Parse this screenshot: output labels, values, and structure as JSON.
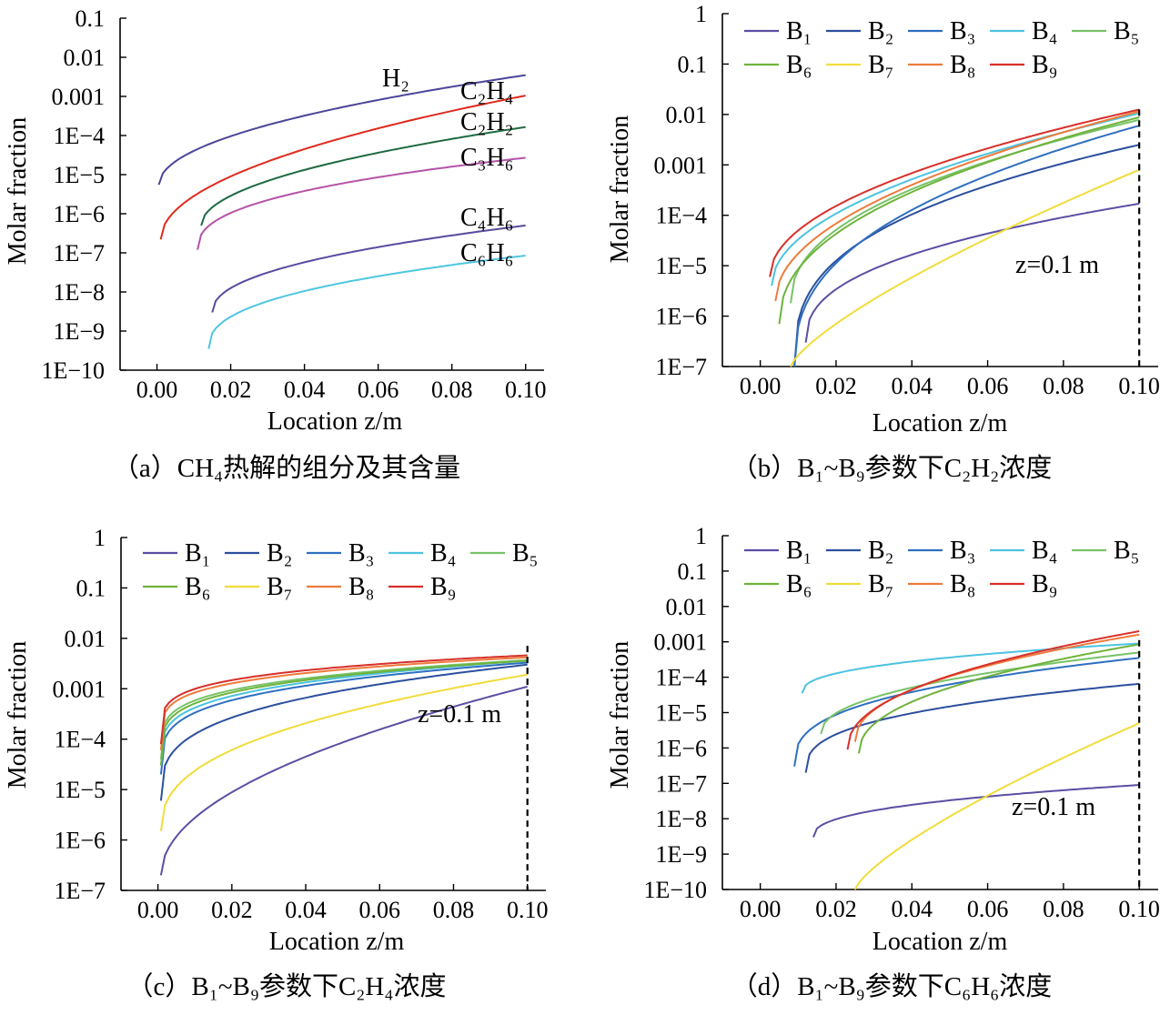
{
  "colors": {
    "B1": "#5a4fa3",
    "B2": "#2c4f9e",
    "B3": "#2f6fc0",
    "B4": "#4cc3e0",
    "B5": "#78c268",
    "B6": "#6fb33c",
    "B7": "#f2dc3a",
    "B8": "#ee7b3c",
    "B9": "#d7302a",
    "H2": "#4b4599",
    "C2H4": "#e02a1e",
    "C2H2": "#1e6b43",
    "C3H6": "#b554a8",
    "C4H6": "#5a4a9e",
    "C6H6": "#4fc6e0"
  },
  "chart_data": [
    {
      "id": "a",
      "type": "line",
      "caption": "（a）CH₄热解的组分及其含量",
      "xlabel": "Location z/m",
      "ylabel": "Molar fraction",
      "x_ticks": [
        "0.00",
        "0.02",
        "0.04",
        "0.06",
        "0.08",
        "0.10"
      ],
      "y_ticks": [
        "1E−10",
        "1E−9",
        "1E−8",
        "1E−7",
        "1E−6",
        "1E−5",
        "1E−4",
        "0.001",
        "0.01",
        "0.1"
      ],
      "xlim": [
        -0.01,
        0.105
      ],
      "ylim_log10": [
        -10,
        -1
      ],
      "y_scale": "log",
      "series": [
        {
          "name": "H2",
          "label": "H₂",
          "color_key": "H2",
          "x0": 0.0005,
          "y0": 5.5e-06,
          "y1": 0.0035,
          "k": 0.5
        },
        {
          "name": "C2H4",
          "label": "C₂H₄",
          "color_key": "C2H4",
          "x0": 0.001,
          "y0": 2.2e-07,
          "y1": 0.00105,
          "k": 0.5
        },
        {
          "name": "C2H2",
          "label": "C₂H₂",
          "color_key": "C2H2",
          "x0": 0.012,
          "y0": 5e-07,
          "y1": 0.000165,
          "k": 0.5
        },
        {
          "name": "C3H6",
          "label": "C₃H₆",
          "color_key": "C3H6",
          "x0": 0.011,
          "y0": 1.2e-07,
          "y1": 2.7e-05,
          "k": 0.4
        },
        {
          "name": "C4H6",
          "label": "C₄H₆",
          "color_key": "C4H6",
          "x0": 0.015,
          "y0": 3e-09,
          "y1": 5e-07,
          "k": 0.45
        },
        {
          "name": "C6H6",
          "label": "C₆H₆",
          "color_key": "C6H6",
          "x0": 0.014,
          "y0": 3.5e-10,
          "y1": 8.5e-08,
          "k": 0.4
        }
      ]
    },
    {
      "id": "b",
      "type": "line",
      "caption": "（b）B₁~B₉参数下C₂H₂浓度",
      "xlabel": "Location z/m",
      "ylabel": "Molar fraction",
      "annotation": "z=0.1 m",
      "x_ticks": [
        "0.00",
        "0.02",
        "0.04",
        "0.06",
        "0.08",
        "0.10"
      ],
      "y_ticks": [
        "1E−7",
        "1E−6",
        "1E−5",
        "1E−4",
        "0.001",
        "0.01",
        "0.1",
        "1"
      ],
      "xlim": [
        -0.01,
        0.105
      ],
      "ylim_log10": [
        -7,
        0
      ],
      "y_scale": "log",
      "marker_x": 0.1,
      "series": [
        {
          "name": "B1",
          "label": "B₁",
          "color_key": "B1",
          "x0": 0.012,
          "y0": 3e-07,
          "y1": 0.00017,
          "k": 0.4
        },
        {
          "name": "B2",
          "label": "B₂",
          "color_key": "B2",
          "x0": 0.009,
          "y0": 1e-07,
          "y1": 0.0025,
          "k": 0.35
        },
        {
          "name": "B3",
          "label": "B₃",
          "color_key": "B3",
          "x0": 0.009,
          "y0": 1e-07,
          "y1": 0.006,
          "k": 0.4
        },
        {
          "name": "B4",
          "label": "B₄",
          "color_key": "B4",
          "x0": 0.003,
          "y0": 4e-06,
          "y1": 0.0105,
          "k": 0.5
        },
        {
          "name": "B5",
          "label": "B₅",
          "color_key": "B5",
          "x0": 0.008,
          "y0": 1.8e-06,
          "y1": 0.0078,
          "k": 0.45
        },
        {
          "name": "B6",
          "label": "B₆",
          "color_key": "B6",
          "x0": 0.005,
          "y0": 7e-07,
          "y1": 0.0088,
          "k": 0.45
        },
        {
          "name": "B7",
          "label": "B₇",
          "color_key": "B7",
          "x0": 0.008,
          "y0": 1e-07,
          "y1": 0.0008,
          "k": 0.75
        },
        {
          "name": "B8",
          "label": "B₈",
          "color_key": "B8",
          "x0": 0.004,
          "y0": 2e-06,
          "y1": 0.0115,
          "k": 0.5
        },
        {
          "name": "B9",
          "label": "B₉",
          "color_key": "B9",
          "x0": 0.0025,
          "y0": 6e-06,
          "y1": 0.0125,
          "k": 0.5
        }
      ]
    },
    {
      "id": "c",
      "type": "line",
      "caption": "（c）B₁~B₉参数下C₂H₄浓度",
      "xlabel": "Location z/m",
      "ylabel": "Molar fraction",
      "annotation": "z=0.1 m",
      "x_ticks": [
        "0.00",
        "0.02",
        "0.04",
        "0.06",
        "0.08",
        "0.10"
      ],
      "y_ticks": [
        "1E−7",
        "1E−6",
        "1E−5",
        "1E−4",
        "0.001",
        "0.01",
        "0.1",
        "1"
      ],
      "xlim": [
        -0.01,
        0.105
      ],
      "ylim_log10": [
        -7,
        0
      ],
      "y_scale": "log",
      "marker_x": 0.1,
      "series": [
        {
          "name": "B1",
          "label": "B₁",
          "color_key": "B1",
          "x0": 0.0008,
          "y0": 2e-07,
          "y1": 0.0011,
          "k": 0.5
        },
        {
          "name": "B2",
          "label": "B₂",
          "color_key": "B2",
          "x0": 0.0008,
          "y0": 6e-06,
          "y1": 0.003,
          "k": 0.3
        },
        {
          "name": "B3",
          "label": "B₃",
          "color_key": "B3",
          "x0": 0.0008,
          "y0": 2e-05,
          "y1": 0.0033,
          "k": 0.25
        },
        {
          "name": "B4",
          "label": "B₄",
          "color_key": "B4",
          "x0": 0.0008,
          "y0": 3e-05,
          "y1": 0.0036,
          "k": 0.25
        },
        {
          "name": "B5",
          "label": "B₅",
          "color_key": "B5",
          "x0": 0.0008,
          "y0": 4e-05,
          "y1": 0.0037,
          "k": 0.22
        },
        {
          "name": "B6",
          "label": "B₆",
          "color_key": "B6",
          "x0": 0.0008,
          "y0": 3e-05,
          "y1": 0.0036,
          "k": 0.22
        },
        {
          "name": "B7",
          "label": "B₇",
          "color_key": "B7",
          "x0": 0.0008,
          "y0": 1.5e-06,
          "y1": 0.0019,
          "k": 0.4
        },
        {
          "name": "B8",
          "label": "B₈",
          "color_key": "B8",
          "x0": 0.0008,
          "y0": 6e-05,
          "y1": 0.0042,
          "k": 0.2
        },
        {
          "name": "B9",
          "label": "B₉",
          "color_key": "B9",
          "x0": 0.0008,
          "y0": 8e-05,
          "y1": 0.0046,
          "k": 0.2
        }
      ]
    },
    {
      "id": "d",
      "type": "line",
      "caption": "（d）B₁~B₉参数下C₆H₆浓度",
      "xlabel": "Location z/m",
      "ylabel": "Molar fraction",
      "annotation": "z=0.1 m",
      "x_ticks": [
        "0.00",
        "0.02",
        "0.04",
        "0.06",
        "0.08",
        "0.10"
      ],
      "y_ticks": [
        "1E−10",
        "1E−9",
        "1E−8",
        "1E−7",
        "1E−6",
        "1E−5",
        "1E−4",
        "0.001",
        "0.01",
        "0.1",
        "1"
      ],
      "xlim": [
        -0.01,
        0.105
      ],
      "ylim_log10": [
        -10,
        0
      ],
      "y_scale": "log",
      "marker_x": 0.1,
      "series": [
        {
          "name": "B1",
          "label": "B₁",
          "color_key": "B1",
          "x0": 0.014,
          "y0": 3e-09,
          "y1": 9e-08,
          "k": 0.4
        },
        {
          "name": "B2",
          "label": "B₂",
          "color_key": "B2",
          "x0": 0.012,
          "y0": 2e-07,
          "y1": 6.5e-05,
          "k": 0.35
        },
        {
          "name": "B3",
          "label": "B₃",
          "color_key": "B3",
          "x0": 0.009,
          "y0": 3e-07,
          "y1": 0.00035,
          "k": 0.35
        },
        {
          "name": "B4",
          "label": "B₄",
          "color_key": "B4",
          "x0": 0.011,
          "y0": 3.5e-05,
          "y1": 0.0009,
          "k": 0.4
        },
        {
          "name": "B5",
          "label": "B₅",
          "color_key": "B5",
          "x0": 0.016,
          "y0": 2.5e-06,
          "y1": 0.0005,
          "k": 0.45
        },
        {
          "name": "B6",
          "label": "B₆",
          "color_key": "B6",
          "x0": 0.026,
          "y0": 7e-07,
          "y1": 0.00085,
          "k": 0.45
        },
        {
          "name": "B7",
          "label": "B₇",
          "color_key": "B7",
          "x0": 0.025,
          "y0": 1e-10,
          "y1": 5e-06,
          "k": 0.75
        },
        {
          "name": "B8",
          "label": "B₈",
          "color_key": "B8",
          "x0": 0.025,
          "y0": 1.5e-06,
          "y1": 0.0016,
          "k": 0.45
        },
        {
          "name": "B9",
          "label": "B₉",
          "color_key": "B9",
          "x0": 0.023,
          "y0": 9e-07,
          "y1": 0.002,
          "k": 0.45
        }
      ]
    }
  ]
}
